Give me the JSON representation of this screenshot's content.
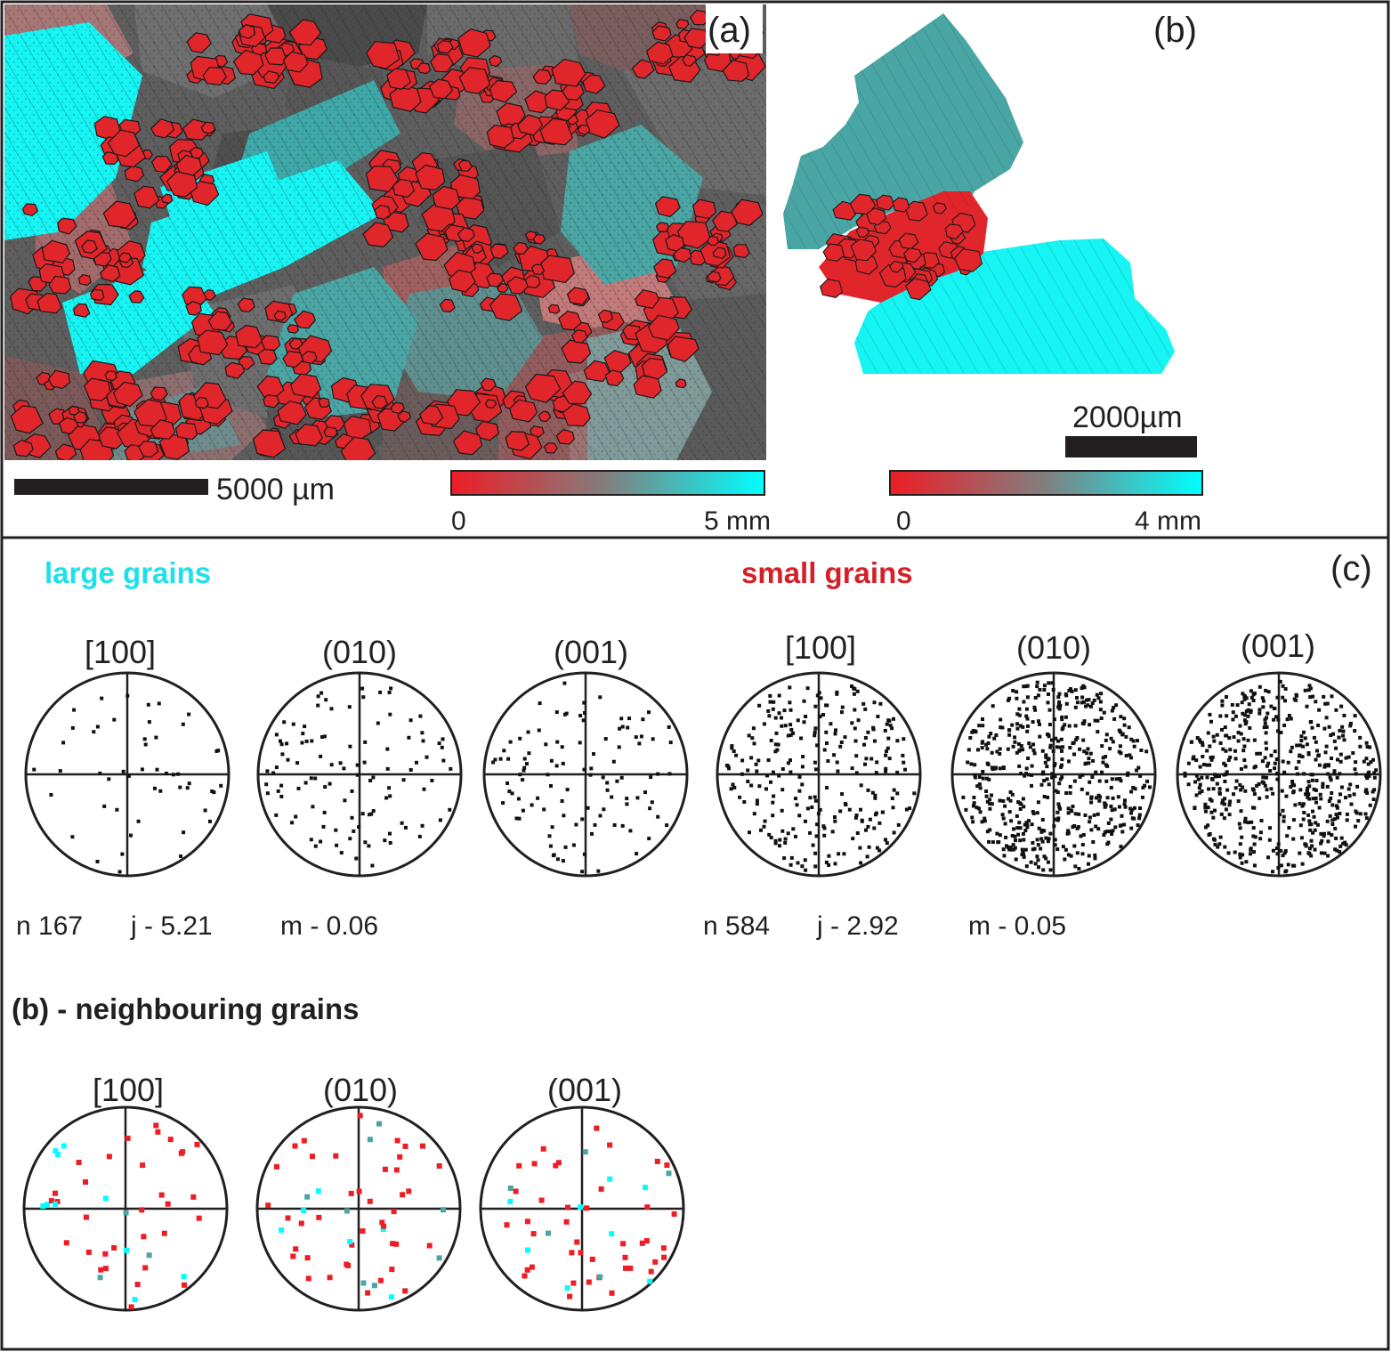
{
  "panels": {
    "a": {
      "label": "(a)",
      "scale_bar": "5000 µm",
      "colorbar": {
        "min": "0",
        "max": "5 mm",
        "colors": [
          "#ee1c24",
          "#808080",
          "#00ffff"
        ]
      }
    },
    "b": {
      "label": "(b)",
      "scale_bar": "2000µm",
      "colorbar": {
        "min": "0",
        "max": "4 mm",
        "colors": [
          "#ee1c24",
          "#808080",
          "#00ffff"
        ]
      }
    },
    "c": {
      "label": "(c)",
      "large": {
        "heading": "large grains",
        "color": "#1de0e8",
        "pole_figures": [
          "[100]",
          "(010)",
          "(001)"
        ],
        "stats": {
          "n": "n 167",
          "j": "j - 5.21",
          "m": "m - 0.06"
        }
      },
      "small": {
        "heading": "small grains",
        "color": "#d42027",
        "pole_figures": [
          "[100]",
          "(010)",
          "(001)"
        ],
        "stats": {
          "n": "n 584",
          "j": "j - 2.92",
          "m": "m - 0.05"
        }
      },
      "neighbouring": {
        "heading": "(b) - neighbouring grains",
        "pole_figures": [
          "[100]",
          "(010)",
          "(001)"
        ],
        "colors": {
          "small": "#ee1c24",
          "large_cyan": "#00ffff",
          "large_teal": "#4aa5a5"
        }
      }
    }
  },
  "map_colors": {
    "red": "#e0252b",
    "cyan": "#16f4f4",
    "teal": "#4aa5a5",
    "grey": "#777777",
    "pink": "#a06a6a"
  }
}
